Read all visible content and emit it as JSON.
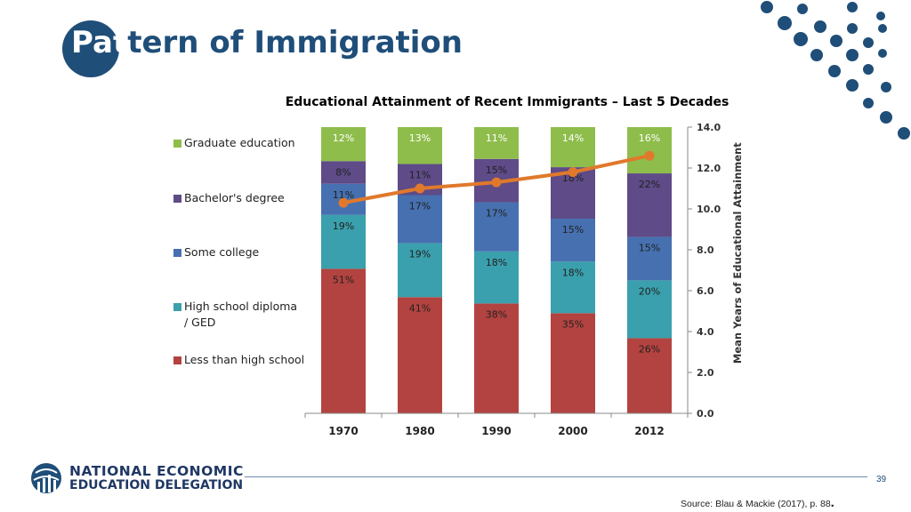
{
  "slide": {
    "title_part1": "Pat",
    "title_part2": "tern of Immigration",
    "page_number": "39",
    "source": "Source: Blau & Mackie (2017), p. 88",
    "source_end": "."
  },
  "logo": {
    "line1": "NATIONAL ECONOMIC",
    "line2": "EDUCATION DELEGATION"
  },
  "colors": {
    "brand_blue": "#1f4e79",
    "line_orange": "#e0792c"
  },
  "chart_data": {
    "type": "bar",
    "stacked": true,
    "title": "Educational Attainment of Recent Immigrants – Last 5 Decades",
    "categories": [
      "1970",
      "1980",
      "1990",
      "2000",
      "2012"
    ],
    "series": [
      {
        "name": "Less than high school",
        "color": "#b34340",
        "values": [
          51,
          41,
          38,
          35,
          26
        ],
        "labels": [
          "51%",
          "41%",
          "38%",
          "35%",
          "26%"
        ]
      },
      {
        "name": "High school diploma / GED",
        "color": "#3aa0ad",
        "values": [
          19,
          19,
          18,
          18,
          20
        ],
        "labels": [
          "19%",
          "19%",
          "18%",
          "18%",
          "20%"
        ]
      },
      {
        "name": "Some college",
        "color": "#4670b0",
        "values": [
          11,
          17,
          17,
          15,
          15
        ],
        "labels": [
          "11%",
          "17%",
          "17%",
          "15%",
          "15%"
        ]
      },
      {
        "name": "Bachelor's degree",
        "color": "#5e4b87",
        "values": [
          8,
          11,
          15,
          18,
          22
        ],
        "labels": [
          "8%",
          "11%",
          "15%",
          "18%",
          "22%"
        ]
      },
      {
        "name": "Graduate education",
        "color": "#8fbd4c",
        "values": [
          12,
          13,
          11,
          14,
          16
        ],
        "labels": [
          "12%",
          "13%",
          "11%",
          "14%",
          "16%"
        ]
      }
    ],
    "line": {
      "values": [
        10.3,
        11.0,
        11.3,
        11.8,
        12.6
      ],
      "color": "#e0792c",
      "axis": "right"
    },
    "y2label": "Mean Years of Educational Attainment",
    "y2lim": [
      0,
      14
    ],
    "y2ticks": [
      "0.0",
      "2.0",
      "4.0",
      "6.0",
      "8.0",
      "10.0",
      "12.0",
      "14.0"
    ],
    "legend_position": "left",
    "grid": false
  }
}
